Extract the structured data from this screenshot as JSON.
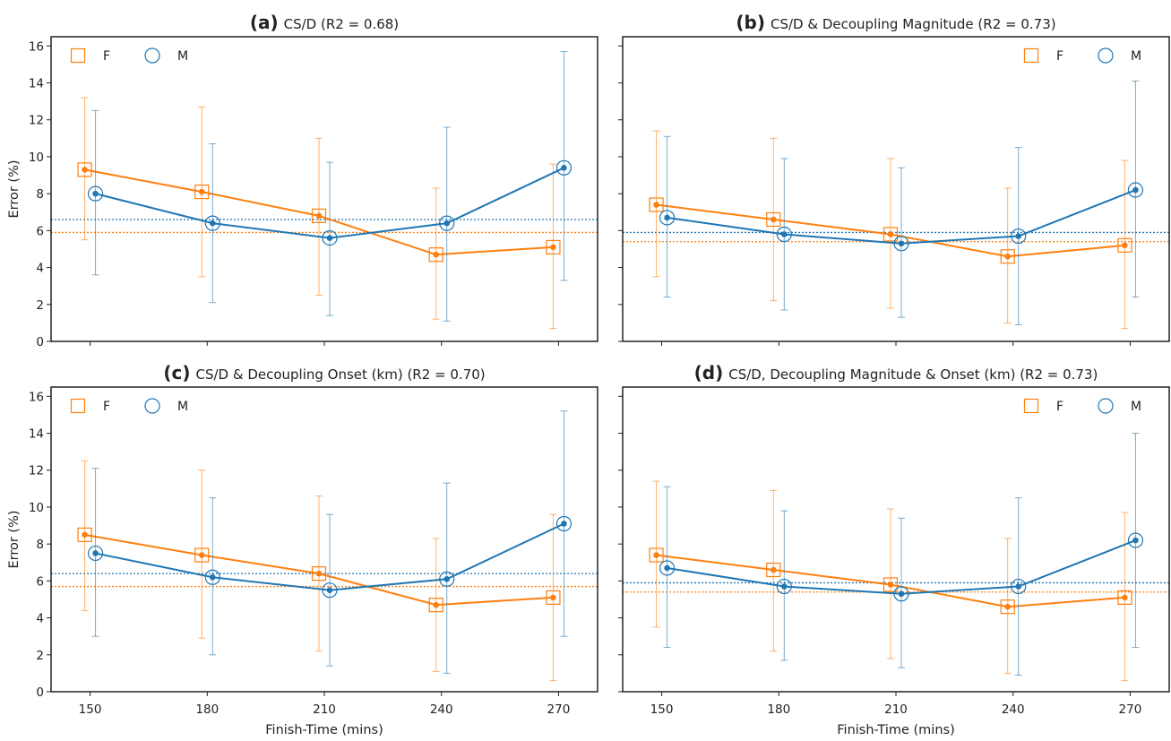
{
  "chart_data": [
    {
      "type": "line",
      "panel": "(a)",
      "title": "CS/D (R2 = 0.68)",
      "xlabel": "",
      "ylabel": "Error (%)",
      "x": [
        150,
        180,
        210,
        240,
        270
      ],
      "xlim": [
        140,
        280
      ],
      "ylim": [
        0,
        16.5
      ],
      "yticks": [
        0,
        2,
        4,
        6,
        8,
        10,
        12,
        14,
        16
      ],
      "show_x_ticklabels": false,
      "show_y_ticklabels": true,
      "legend": "top-left",
      "grid": false,
      "series": [
        {
          "name": "F",
          "color": "#ff7f0e",
          "marker": "square",
          "values": [
            9.3,
            8.1,
            6.8,
            4.7,
            5.1
          ],
          "err_low": [
            5.5,
            3.5,
            2.5,
            1.2,
            0.7
          ],
          "err_high": [
            13.2,
            12.7,
            11.0,
            8.3,
            9.6
          ],
          "mean": 5.9
        },
        {
          "name": "M",
          "color": "#1f77b4",
          "marker": "circle",
          "values": [
            8.0,
            6.4,
            5.6,
            6.4,
            9.4
          ],
          "err_low": [
            3.6,
            2.1,
            1.4,
            1.1,
            3.3
          ],
          "err_high": [
            12.5,
            10.7,
            9.7,
            11.6,
            15.7
          ],
          "mean": 6.6
        }
      ]
    },
    {
      "type": "line",
      "panel": "(b)",
      "title": "CS/D & Decoupling Magnitude (R2 = 0.73)",
      "xlabel": "",
      "ylabel": "",
      "x": [
        150,
        180,
        210,
        240,
        270
      ],
      "xlim": [
        140,
        280
      ],
      "ylim": [
        0,
        16.5
      ],
      "yticks": [
        0,
        2,
        4,
        6,
        8,
        10,
        12,
        14,
        16
      ],
      "show_x_ticklabels": false,
      "show_y_ticklabels": false,
      "legend": "top-right",
      "grid": false,
      "series": [
        {
          "name": "F",
          "color": "#ff7f0e",
          "marker": "square",
          "values": [
            7.4,
            6.6,
            5.8,
            4.6,
            5.2
          ],
          "err_low": [
            3.5,
            2.2,
            1.8,
            1.0,
            0.7
          ],
          "err_high": [
            11.4,
            11.0,
            9.9,
            8.3,
            9.8
          ],
          "mean": 5.4
        },
        {
          "name": "M",
          "color": "#1f77b4",
          "marker": "circle",
          "values": [
            6.7,
            5.8,
            5.3,
            5.7,
            8.2
          ],
          "err_low": [
            2.4,
            1.7,
            1.3,
            0.9,
            2.4
          ],
          "err_high": [
            11.1,
            9.9,
            9.4,
            10.5,
            14.1
          ],
          "mean": 5.9
        }
      ]
    },
    {
      "type": "line",
      "panel": "(c)",
      "title": "CS/D & Decoupling Onset (km) (R2 = 0.70)",
      "xlabel": "Finish-Time (mins)",
      "ylabel": "Error (%)",
      "x": [
        150,
        180,
        210,
        240,
        270
      ],
      "xlim": [
        140,
        280
      ],
      "ylim": [
        0,
        16.5
      ],
      "yticks": [
        0,
        2,
        4,
        6,
        8,
        10,
        12,
        14,
        16
      ],
      "show_x_ticklabels": true,
      "show_y_ticklabels": true,
      "legend": "top-left",
      "grid": false,
      "series": [
        {
          "name": "F",
          "color": "#ff7f0e",
          "marker": "square",
          "values": [
            8.5,
            7.4,
            6.4,
            4.7,
            5.1
          ],
          "err_low": [
            4.4,
            2.9,
            2.2,
            1.1,
            0.6
          ],
          "err_high": [
            12.5,
            12.0,
            10.6,
            8.3,
            9.6
          ],
          "mean": 5.7
        },
        {
          "name": "M",
          "color": "#1f77b4",
          "marker": "circle",
          "values": [
            7.5,
            6.2,
            5.5,
            6.1,
            9.1
          ],
          "err_low": [
            3.0,
            2.0,
            1.4,
            1.0,
            3.0
          ],
          "err_high": [
            12.1,
            10.5,
            9.6,
            11.3,
            15.2
          ],
          "mean": 6.4
        }
      ]
    },
    {
      "type": "line",
      "panel": "(d)",
      "title": "CS/D, Decoupling Magnitude & Onset (km) (R2 = 0.73)",
      "xlabel": "Finish-Time (mins)",
      "ylabel": "",
      "x": [
        150,
        180,
        210,
        240,
        270
      ],
      "xlim": [
        140,
        280
      ],
      "ylim": [
        0,
        16.5
      ],
      "yticks": [
        0,
        2,
        4,
        6,
        8,
        10,
        12,
        14,
        16
      ],
      "show_x_ticklabels": true,
      "show_y_ticklabels": false,
      "legend": "top-right",
      "grid": false,
      "series": [
        {
          "name": "F",
          "color": "#ff7f0e",
          "marker": "square",
          "values": [
            7.4,
            6.6,
            5.8,
            4.6,
            5.1
          ],
          "err_low": [
            3.5,
            2.2,
            1.8,
            1.0,
            0.6
          ],
          "err_high": [
            11.4,
            10.9,
            9.9,
            8.3,
            9.7
          ],
          "mean": 5.4
        },
        {
          "name": "M",
          "color": "#1f77b4",
          "marker": "circle",
          "values": [
            6.7,
            5.7,
            5.3,
            5.7,
            8.2
          ],
          "err_low": [
            2.4,
            1.7,
            1.3,
            0.9,
            2.4
          ],
          "err_high": [
            11.1,
            9.8,
            9.4,
            10.5,
            14.0
          ],
          "mean": 5.9
        }
      ]
    }
  ]
}
